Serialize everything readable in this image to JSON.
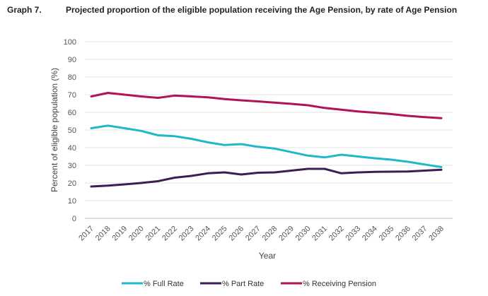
{
  "header": {
    "label": "Graph 7.",
    "title": "Projected proportion of the eligible population receiving the Age Pension, by rate of Age Pension"
  },
  "chart_data": {
    "type": "line",
    "xlabel": "Year",
    "ylabel": "Percent of eligible population (%)",
    "ylim": [
      0,
      100
    ],
    "yticks": [
      "0",
      "10",
      "20",
      "30",
      "40",
      "50",
      "60",
      "70",
      "80",
      "90",
      "100"
    ],
    "grid": true,
    "legend_position": "bottom",
    "categories": [
      "2017",
      "2018",
      "2019",
      "2020",
      "2021",
      "2022",
      "2023",
      "2024",
      "2025",
      "2026",
      "2027",
      "2028",
      "2029",
      "2030",
      "2031",
      "2032",
      "2033",
      "2034",
      "2035",
      "2036",
      "2037",
      "2038"
    ],
    "series": [
      {
        "name": "% Full Rate",
        "color": "#1FB8C9",
        "values": [
          51,
          52.5,
          51,
          49.5,
          47,
          46.5,
          45,
          43,
          41.5,
          42,
          40.5,
          39.5,
          37.5,
          35.5,
          34.5,
          36,
          35,
          34,
          33.2,
          32,
          30.5,
          29
        ]
      },
      {
        "name": "% Part Rate",
        "color": "#3B1E54",
        "values": [
          18,
          18.5,
          19.2,
          20,
          21,
          23,
          24,
          25.5,
          26,
          24.8,
          25.8,
          26,
          27,
          28,
          28,
          25.5,
          26,
          26.3,
          26.4,
          26.5,
          27,
          27.5
        ]
      },
      {
        "name": "% Receiving Pension",
        "color": "#B01356",
        "values": [
          69,
          71,
          70,
          69,
          68.2,
          69.5,
          69,
          68.5,
          67.5,
          66.8,
          66.2,
          65.5,
          64.8,
          64,
          62.5,
          61.5,
          60.5,
          59.8,
          59,
          58,
          57.3,
          56.7
        ]
      }
    ]
  }
}
